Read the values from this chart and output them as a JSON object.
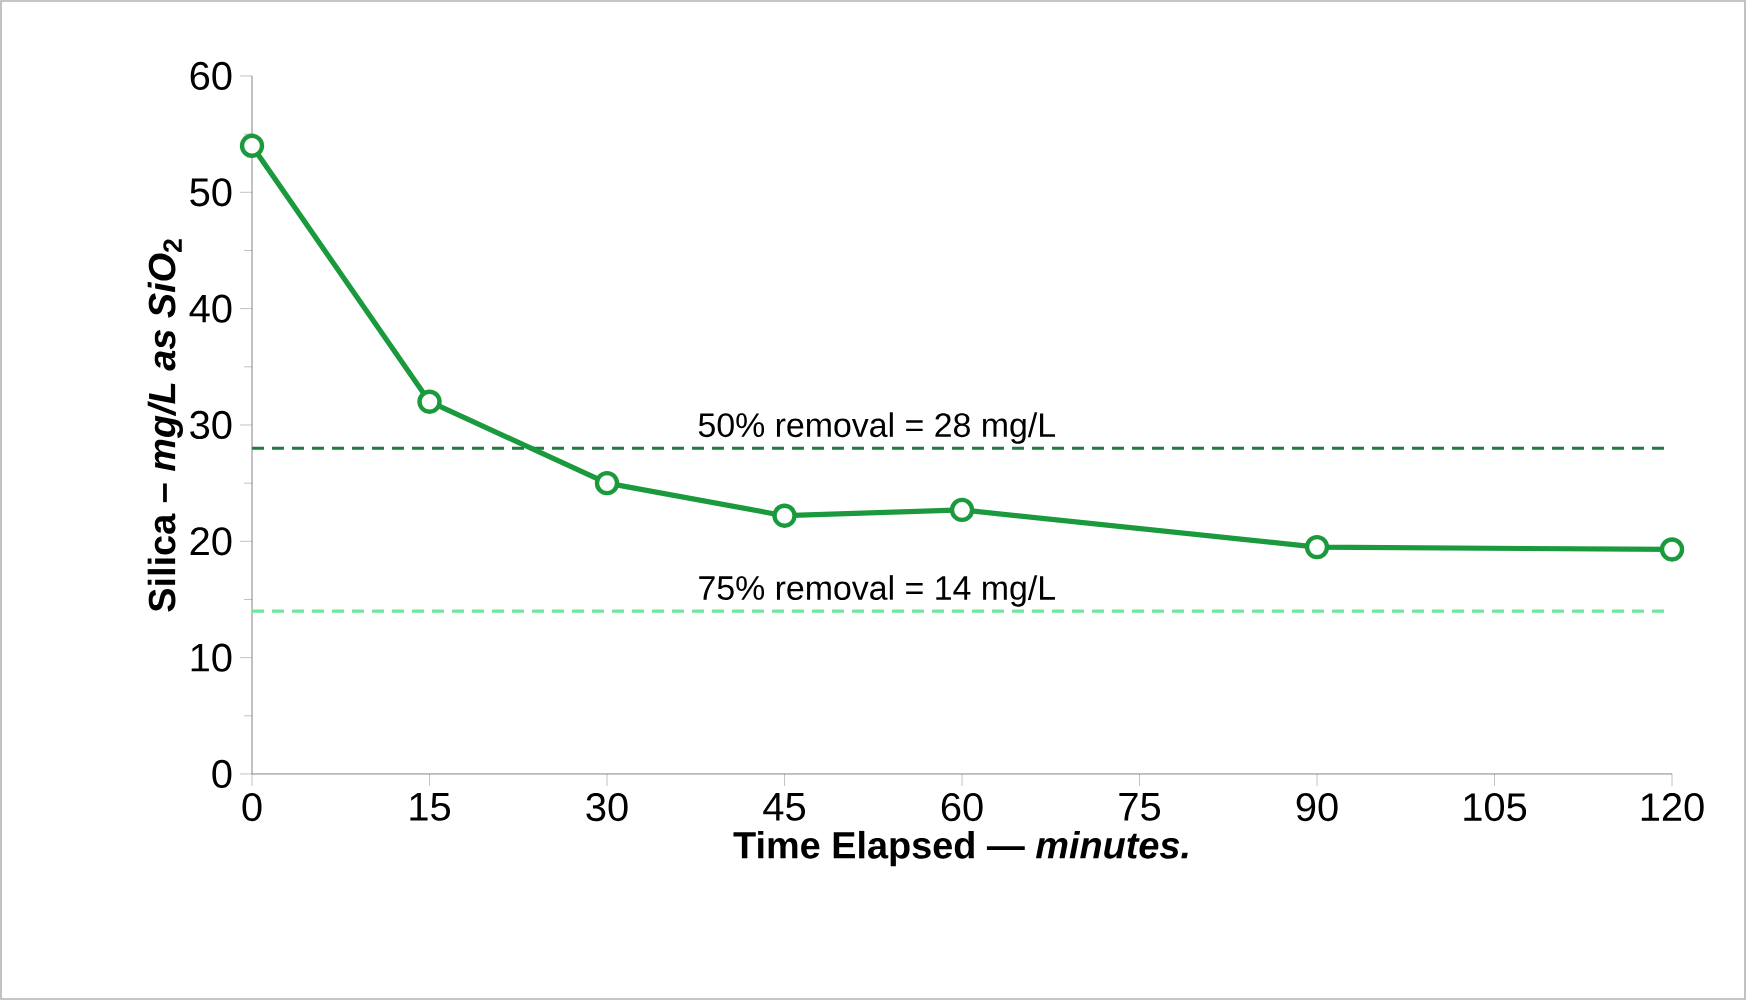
{
  "chart_data": {
    "type": "line",
    "xlabel": "Time Elapsed — *minutes.*",
    "ylabel": "Silica – *mg/L as SiO*$_{2}$",
    "x": [
      0,
      15,
      30,
      45,
      60,
      90,
      120
    ],
    "series": [
      {
        "color": "#1a9a3c",
        "values": [
          54,
          32,
          25,
          22.2,
          22.7,
          19.5,
          19.3
        ]
      }
    ],
    "xlim": [
      0,
      120
    ],
    "xticks": [
      0,
      15,
      30,
      45,
      60,
      75,
      90,
      105,
      120
    ],
    "ylim": [
      0,
      60
    ],
    "yticks": [
      0,
      10,
      20,
      30,
      40,
      50,
      60
    ],
    "ref_lines": [
      {
        "axis": "y",
        "value": 28,
        "label": "50% removal = 28 mg/L",
        "color": "#1e7a3e",
        "line_style": "dashed"
      },
      {
        "axis": "y",
        "value": 14,
        "label": "75% removal = 14 mg/L",
        "color": "#6ee89c",
        "line_style": "dashed"
      }
    ],
    "marker": "circle",
    "line_style": "solid",
    "grid": false
  }
}
